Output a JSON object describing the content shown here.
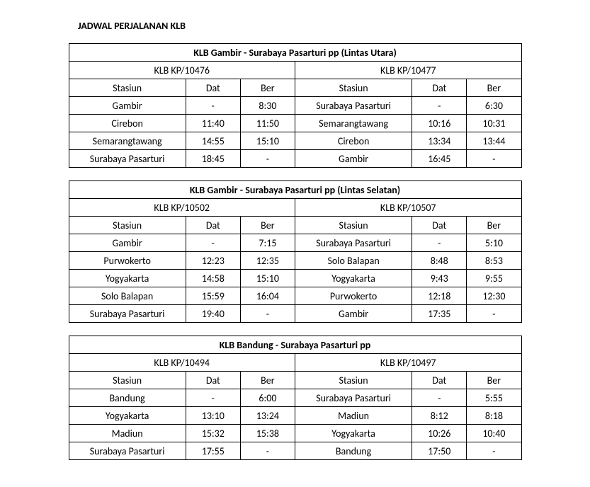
{
  "page_title": "JADWAL PERJALANAN KLB",
  "labels": {
    "stasiun": "Stasiun",
    "dat": "Dat",
    "ber": "Ber"
  },
  "tables": [
    {
      "route": "KLB Gambir - Surabaya Pasarturi pp (Lintas Utara)",
      "left_code": "KLB KP/10476",
      "right_code": "KLB KP/10477",
      "rows": [
        {
          "l_st": "Gambir",
          "l_dat": "-",
          "l_ber": "8:30",
          "r_st": "Surabaya Pasarturi",
          "r_dat": "-",
          "r_ber": "6:30"
        },
        {
          "l_st": "Cirebon",
          "l_dat": "11:40",
          "l_ber": "11:50",
          "r_st": "Semarangtawang",
          "r_dat": "10:16",
          "r_ber": "10:31"
        },
        {
          "l_st": "Semarangtawang",
          "l_dat": "14:55",
          "l_ber": "15:10",
          "r_st": "Cirebon",
          "r_dat": "13:34",
          "r_ber": "13:44"
        },
        {
          "l_st": "Surabaya Pasarturi",
          "l_dat": "18:45",
          "l_ber": "-",
          "r_st": "Gambir",
          "r_dat": "16:45",
          "r_ber": "-"
        }
      ]
    },
    {
      "route": "KLB Gambir - Surabaya Pasarturi pp (Lintas Selatan)",
      "left_code": "KLB KP/10502",
      "right_code": "KLB KP/10507",
      "rows": [
        {
          "l_st": "Gambir",
          "l_dat": "-",
          "l_ber": "7:15",
          "r_st": "Surabaya Pasarturi",
          "r_dat": "-",
          "r_ber": "5:10"
        },
        {
          "l_st": "Purwokerto",
          "l_dat": "12:23",
          "l_ber": "12:35",
          "r_st": "Solo Balapan",
          "r_dat": "8:48",
          "r_ber": "8:53"
        },
        {
          "l_st": "Yogyakarta",
          "l_dat": "14:58",
          "l_ber": "15:10",
          "r_st": "Yogyakarta",
          "r_dat": "9:43",
          "r_ber": "9:55"
        },
        {
          "l_st": "Solo Balapan",
          "l_dat": "15:59",
          "l_ber": "16:04",
          "r_st": "Purwokerto",
          "r_dat": "12:18",
          "r_ber": "12:30"
        },
        {
          "l_st": "Surabaya Pasarturi",
          "l_dat": "19:40",
          "l_ber": "-",
          "r_st": "Gambir",
          "r_dat": "17:35",
          "r_ber": "-"
        }
      ]
    },
    {
      "route": "KLB Bandung - Surabaya Pasarturi pp",
      "left_code": "KLB KP/10494",
      "right_code": "KLB KP/10497",
      "rows": [
        {
          "l_st": "Bandung",
          "l_dat": "-",
          "l_ber": "6:00",
          "r_st": "Surabaya Pasarturi",
          "r_dat": "-",
          "r_ber": "5:55"
        },
        {
          "l_st": "Yogyakarta",
          "l_dat": "13:10",
          "l_ber": "13:24",
          "r_st": "Madiun",
          "r_dat": "8:12",
          "r_ber": "8:18"
        },
        {
          "l_st": "Madiun",
          "l_dat": "15:32",
          "l_ber": "15:38",
          "r_st": "Yogyakarta",
          "r_dat": "10:26",
          "r_ber": "10:40"
        },
        {
          "l_st": "Surabaya Pasarturi",
          "l_dat": "17:55",
          "l_ber": "-",
          "r_st": "Bandung",
          "r_dat": "17:50",
          "r_ber": "-"
        }
      ]
    }
  ]
}
